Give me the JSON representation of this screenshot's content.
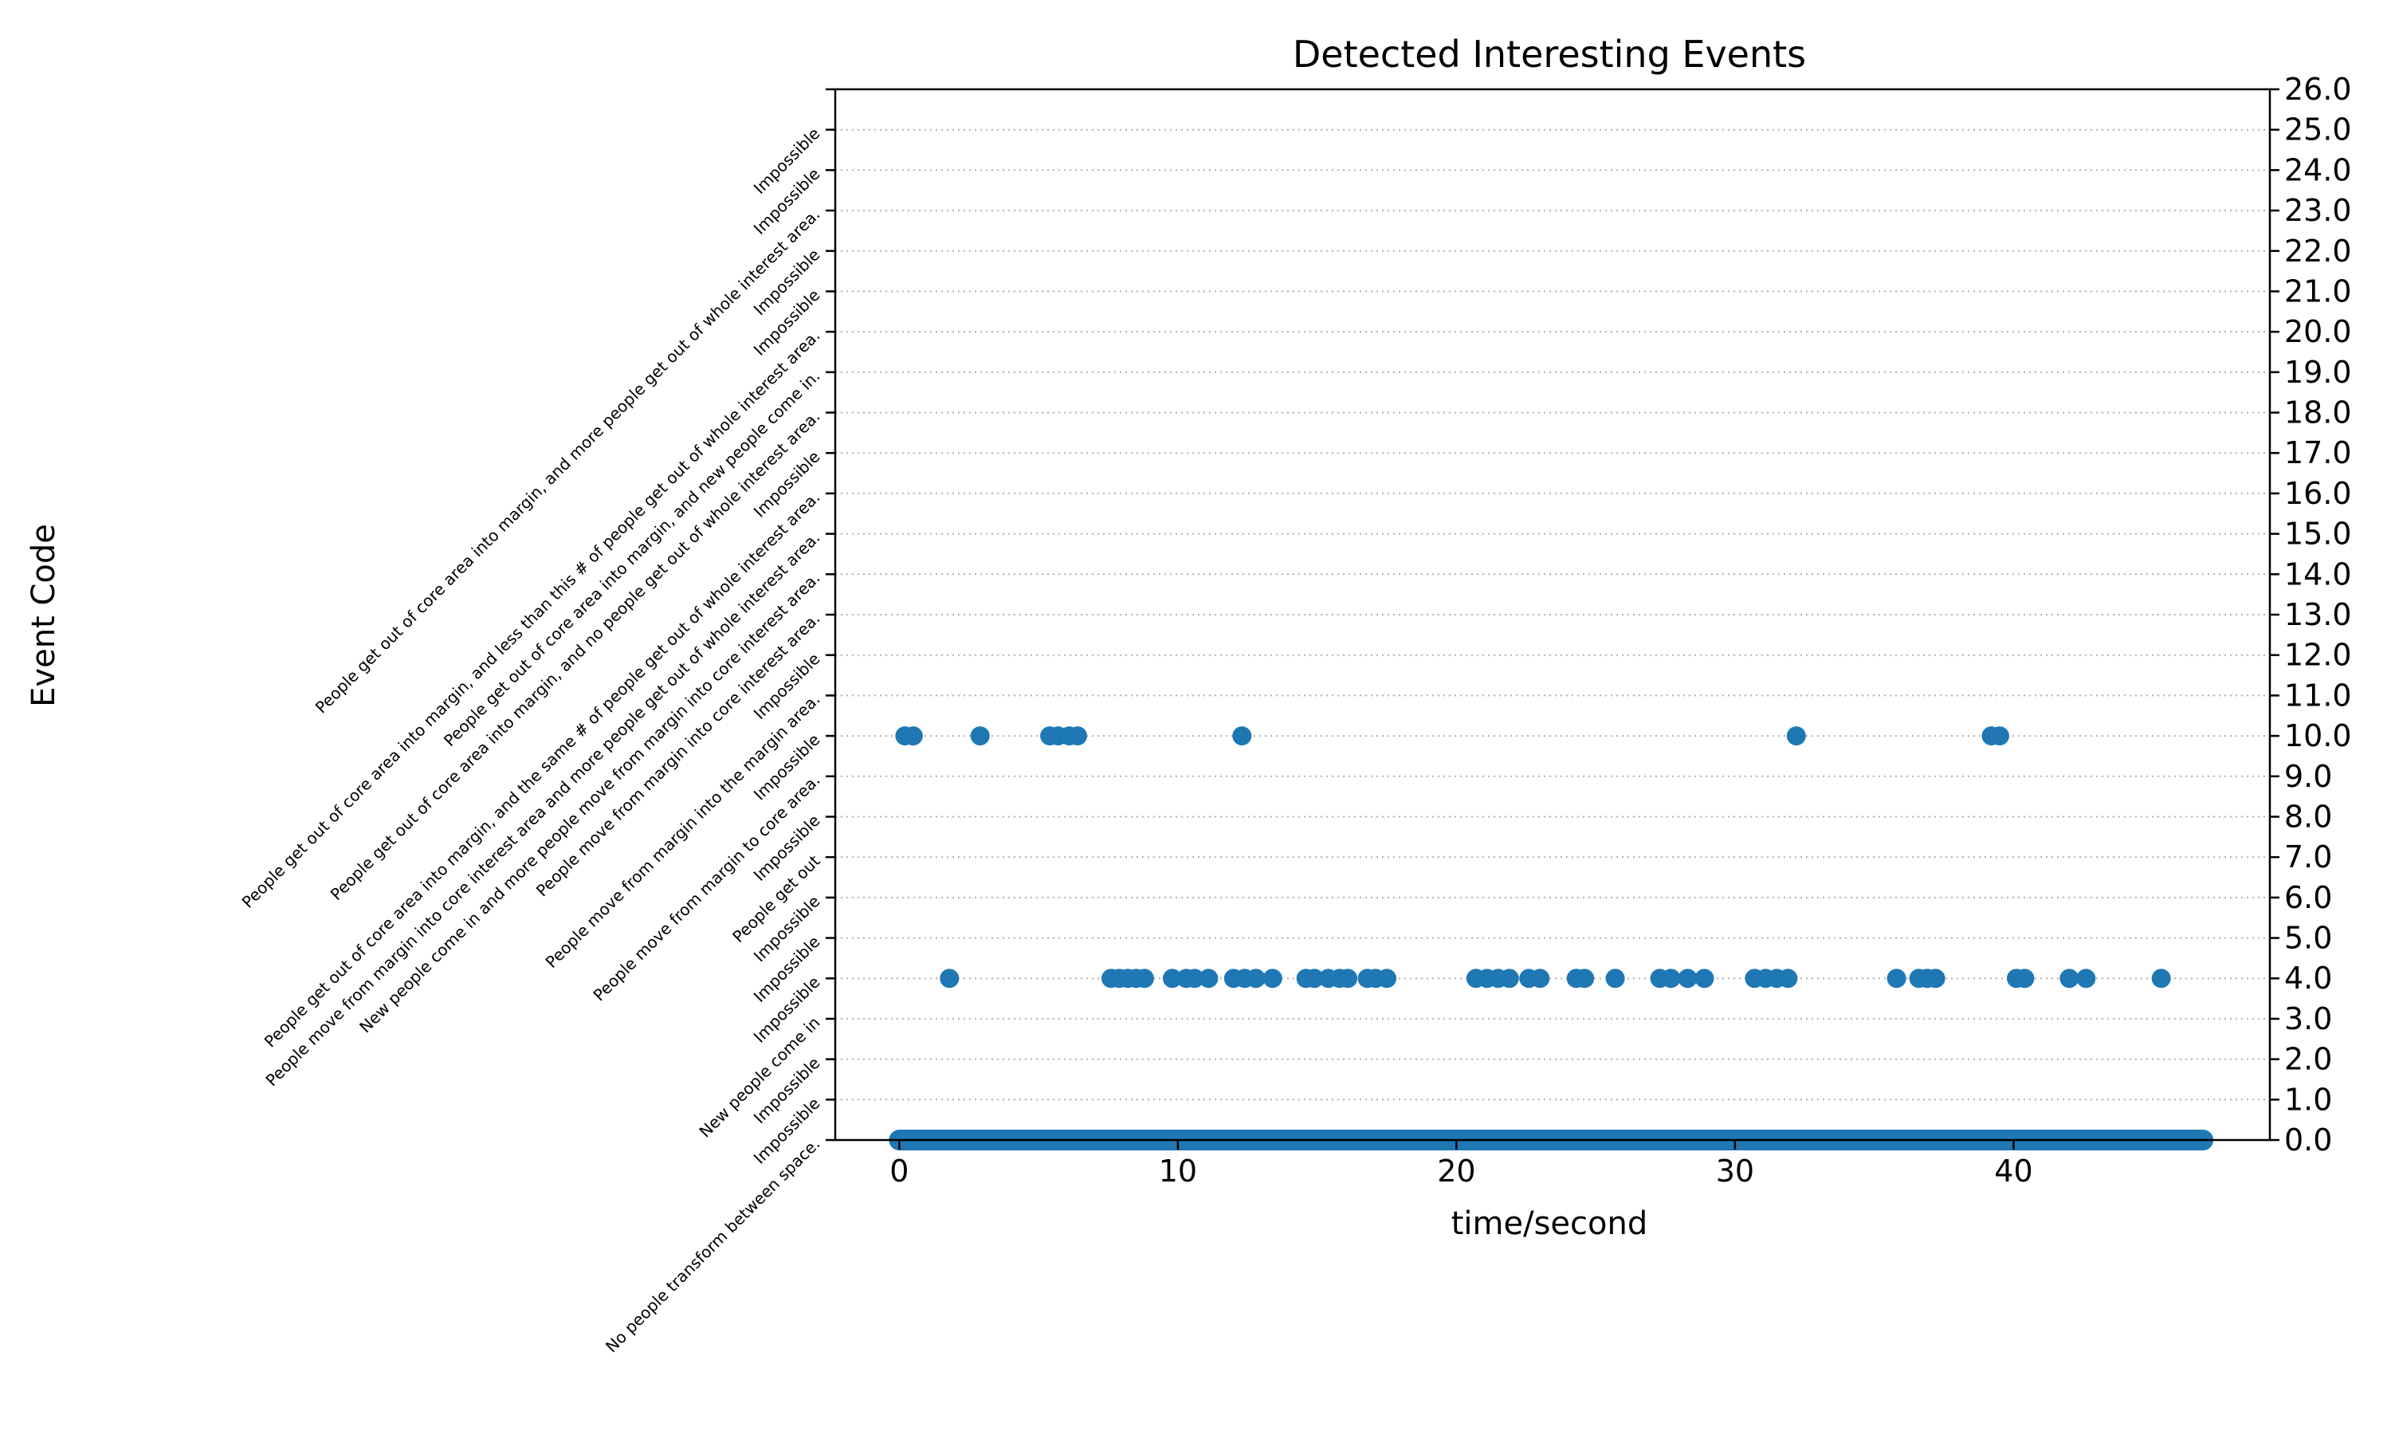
{
  "chart_data": {
    "type": "scatter",
    "title": "Detected Interesting Events",
    "xlabel": "time/second",
    "ylabel": "Event Code",
    "xlim": [
      -2.3,
      49.2
    ],
    "ylim": [
      0,
      26
    ],
    "x_ticks": [
      0,
      10,
      20,
      30,
      40
    ],
    "y_ticks_right": [
      "0.0",
      "1.0",
      "2.0",
      "3.0",
      "4.0",
      "5.0",
      "6.0",
      "7.0",
      "8.0",
      "9.0",
      "10.0",
      "11.0",
      "12.0",
      "13.0",
      "14.0",
      "15.0",
      "16.0",
      "17.0",
      "18.0",
      "19.0",
      "20.0",
      "21.0",
      "22.0",
      "23.0",
      "24.0",
      "25.0",
      "26.0"
    ],
    "y_category_labels": [
      "No people transform between space.",
      "Impossible",
      "Impossible",
      "New people come in",
      "Impossible",
      "Impossible",
      "Impossible",
      "People get out",
      "Impossible",
      "People move from margin to core area.",
      "Impossible",
      "People move from margin into the margin  area.",
      "Impossible",
      "People move from margin into core interest area.",
      "New people come in and more people move from margin into core interest area.",
      "People move from margin into core interest area and more people get out of whole interest area.",
      "People get out of core area into margin, and the same # of people get out of whole interest area.",
      "Impossible",
      "People get out of core area into margin, and no people get out of whole interest area.",
      "People get out of core area into margin, and new people come in.",
      "People get out of core area into margin, and less than this # of people get out of whole interest area.",
      "Impossible",
      "Impossible",
      "People get out of core area into margin, and more people get out of whole interest area.",
      "Impossible",
      "Impossible",
      ""
    ],
    "grid": "horizontal dotted",
    "series": [
      {
        "color": "#1f77b4",
        "points": [
          {
            "x": 0.2,
            "y": 10
          },
          {
            "x": 0.5,
            "y": 10
          },
          {
            "x": 2.9,
            "y": 10
          },
          {
            "x": 5.4,
            "y": 10
          },
          {
            "x": 5.7,
            "y": 10
          },
          {
            "x": 6.1,
            "y": 10
          },
          {
            "x": 6.4,
            "y": 10
          },
          {
            "x": 12.3,
            "y": 10
          },
          {
            "x": 32.2,
            "y": 10
          },
          {
            "x": 39.2,
            "y": 10
          },
          {
            "x": 39.5,
            "y": 10
          },
          {
            "x": 1.8,
            "y": 4
          },
          {
            "x": 7.6,
            "y": 4
          },
          {
            "x": 7.9,
            "y": 4
          },
          {
            "x": 8.2,
            "y": 4
          },
          {
            "x": 8.5,
            "y": 4
          },
          {
            "x": 8.8,
            "y": 4
          },
          {
            "x": 9.8,
            "y": 4
          },
          {
            "x": 10.3,
            "y": 4
          },
          {
            "x": 10.6,
            "y": 4
          },
          {
            "x": 11.1,
            "y": 4
          },
          {
            "x": 12.0,
            "y": 4
          },
          {
            "x": 12.4,
            "y": 4
          },
          {
            "x": 12.8,
            "y": 4
          },
          {
            "x": 13.4,
            "y": 4
          },
          {
            "x": 14.6,
            "y": 4
          },
          {
            "x": 14.9,
            "y": 4
          },
          {
            "x": 15.4,
            "y": 4
          },
          {
            "x": 15.8,
            "y": 4
          },
          {
            "x": 16.1,
            "y": 4
          },
          {
            "x": 16.8,
            "y": 4
          },
          {
            "x": 17.1,
            "y": 4
          },
          {
            "x": 17.5,
            "y": 4
          },
          {
            "x": 20.7,
            "y": 4
          },
          {
            "x": 21.1,
            "y": 4
          },
          {
            "x": 21.5,
            "y": 4
          },
          {
            "x": 21.9,
            "y": 4
          },
          {
            "x": 22.6,
            "y": 4
          },
          {
            "x": 23.0,
            "y": 4
          },
          {
            "x": 24.3,
            "y": 4
          },
          {
            "x": 24.6,
            "y": 4
          },
          {
            "x": 25.7,
            "y": 4
          },
          {
            "x": 27.3,
            "y": 4
          },
          {
            "x": 27.7,
            "y": 4
          },
          {
            "x": 28.3,
            "y": 4
          },
          {
            "x": 28.9,
            "y": 4
          },
          {
            "x": 30.7,
            "y": 4
          },
          {
            "x": 31.1,
            "y": 4
          },
          {
            "x": 31.5,
            "y": 4
          },
          {
            "x": 31.9,
            "y": 4
          },
          {
            "x": 35.8,
            "y": 4
          },
          {
            "x": 36.6,
            "y": 4
          },
          {
            "x": 36.9,
            "y": 4
          },
          {
            "x": 37.2,
            "y": 4
          },
          {
            "x": 40.1,
            "y": 4
          },
          {
            "x": 40.4,
            "y": 4
          },
          {
            "x": 42.0,
            "y": 4
          },
          {
            "x": 42.6,
            "y": 4
          },
          {
            "x": 45.3,
            "y": 4
          }
        ],
        "continuous_band": {
          "y": 0,
          "x_start": 0.0,
          "x_end": 46.8
        }
      }
    ]
  }
}
